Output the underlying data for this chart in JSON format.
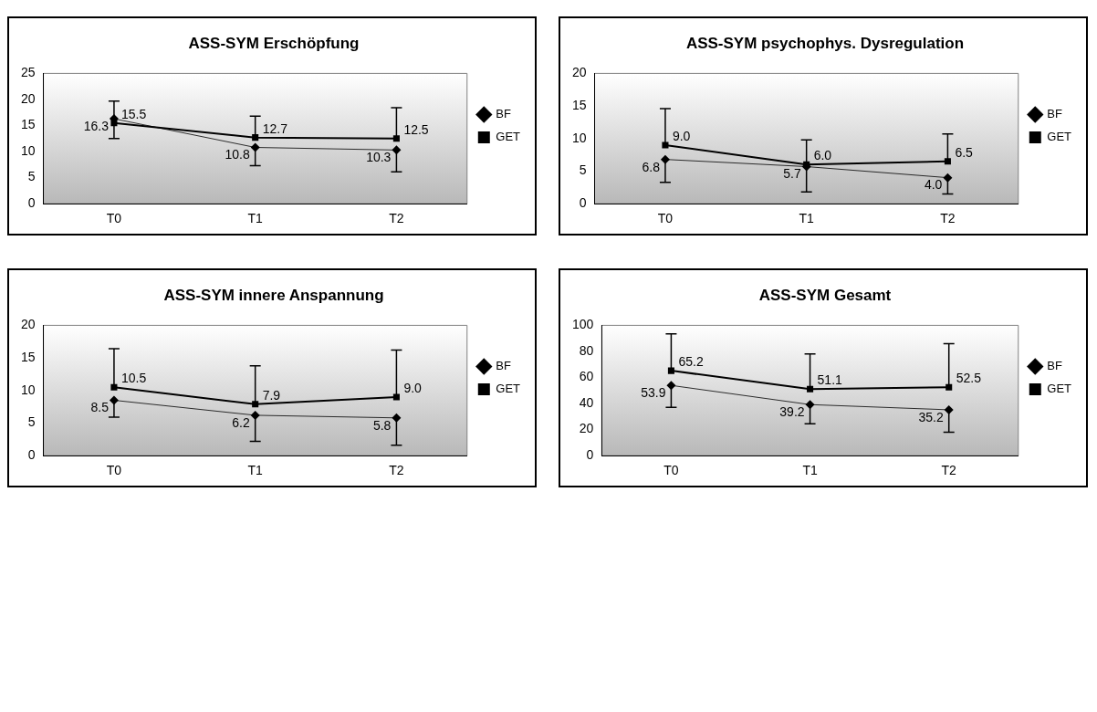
{
  "chart_data": [
    {
      "type": "line",
      "title": "ASS-SYM Erschöpfung",
      "categories": [
        "T0",
        "T1",
        "T2"
      ],
      "ylim": [
        0,
        25
      ],
      "yticks": [
        0,
        5,
        10,
        15,
        20,
        25
      ],
      "grid": false,
      "legend": "right",
      "series": [
        {
          "name": "BF",
          "color": "#000000",
          "marker": "diamond",
          "values": [
            16.3,
            10.8,
            10.3
          ],
          "value_labels": [
            "16.3",
            "10.8",
            "10.3"
          ],
          "errors": [
            [
              12.5,
              16.3
            ],
            [
              7.3,
              10.8
            ],
            [
              6.1,
              10.3
            ]
          ]
        },
        {
          "name": "GET",
          "color": "#000000",
          "marker": "square",
          "values": [
            15.5,
            12.7,
            12.5
          ],
          "value_labels": [
            "15.5",
            "12.7",
            "12.5"
          ],
          "errors": [
            [
              15.5,
              19.7
            ],
            [
              12.7,
              16.8
            ],
            [
              12.5,
              18.4
            ]
          ]
        }
      ]
    },
    {
      "type": "line",
      "title": "ASS-SYM psychophys. Dysregulation",
      "categories": [
        "T0",
        "T1",
        "T2"
      ],
      "ylim": [
        0,
        20
      ],
      "yticks": [
        0,
        5,
        10,
        15,
        20
      ],
      "grid": false,
      "legend": "right",
      "series": [
        {
          "name": "BF",
          "color": "#000000",
          "marker": "diamond",
          "values": [
            6.8,
            5.7,
            4
          ],
          "value_labels": [
            "6.8",
            "5.7",
            "4.0"
          ],
          "errors": [
            [
              3.3,
              6.8
            ],
            [
              1.8,
              5.7
            ],
            [
              1.5,
              4
            ]
          ]
        },
        {
          "name": "GET",
          "color": "#000000",
          "marker": "square",
          "values": [
            9,
            6,
            6.5
          ],
          "value_labels": [
            "9.0",
            "6.0",
            "6.5"
          ],
          "errors": [
            [
              9,
              14.6
            ],
            [
              6,
              9.8
            ],
            [
              6.5,
              10.7
            ]
          ]
        }
      ]
    },
    {
      "type": "line",
      "title": "ASS-SYM innere Anspannung",
      "categories": [
        "T0",
        "T1",
        "T2"
      ],
      "ylim": [
        0,
        20
      ],
      "yticks": [
        0,
        5,
        10,
        15,
        20
      ],
      "grid": false,
      "legend": "right",
      "series": [
        {
          "name": "BF",
          "color": "#000000",
          "marker": "diamond",
          "values": [
            8.5,
            6.2,
            5.8
          ],
          "value_labels": [
            "8.5",
            "6.2",
            "5.8"
          ],
          "errors": [
            [
              5.9,
              8.5
            ],
            [
              2.2,
              6.2
            ],
            [
              1.6,
              5.8
            ]
          ]
        },
        {
          "name": "GET",
          "color": "#000000",
          "marker": "square",
          "values": [
            10.5,
            7.9,
            9
          ],
          "value_labels": [
            "10.5",
            "7.9",
            "9.0"
          ],
          "errors": [
            [
              10.5,
              16.4
            ],
            [
              7.9,
              13.8
            ],
            [
              9,
              16.2
            ]
          ]
        }
      ]
    },
    {
      "type": "line",
      "title": "ASS-SYM Gesamt",
      "categories": [
        "T0",
        "T1",
        "T2"
      ],
      "ylim": [
        0,
        100
      ],
      "yticks": [
        0,
        20,
        40,
        60,
        80,
        100
      ],
      "grid": false,
      "legend": "right",
      "series": [
        {
          "name": "BF",
          "color": "#000000",
          "marker": "diamond",
          "values": [
            53.9,
            39.2,
            35.2
          ],
          "value_labels": [
            "53.9",
            "39.2",
            "35.2"
          ],
          "errors": [
            [
              37,
              53.9
            ],
            [
              24.5,
              39.2
            ],
            [
              18,
              35.2
            ]
          ]
        },
        {
          "name": "GET",
          "color": "#000000",
          "marker": "square",
          "values": [
            65.2,
            51.1,
            52.5
          ],
          "value_labels": [
            "65.2",
            "51.1",
            "52.5"
          ],
          "errors": [
            [
              65.2,
              93.5
            ],
            [
              51.1,
              78
            ],
            [
              52.5,
              86
            ]
          ]
        }
      ]
    }
  ]
}
